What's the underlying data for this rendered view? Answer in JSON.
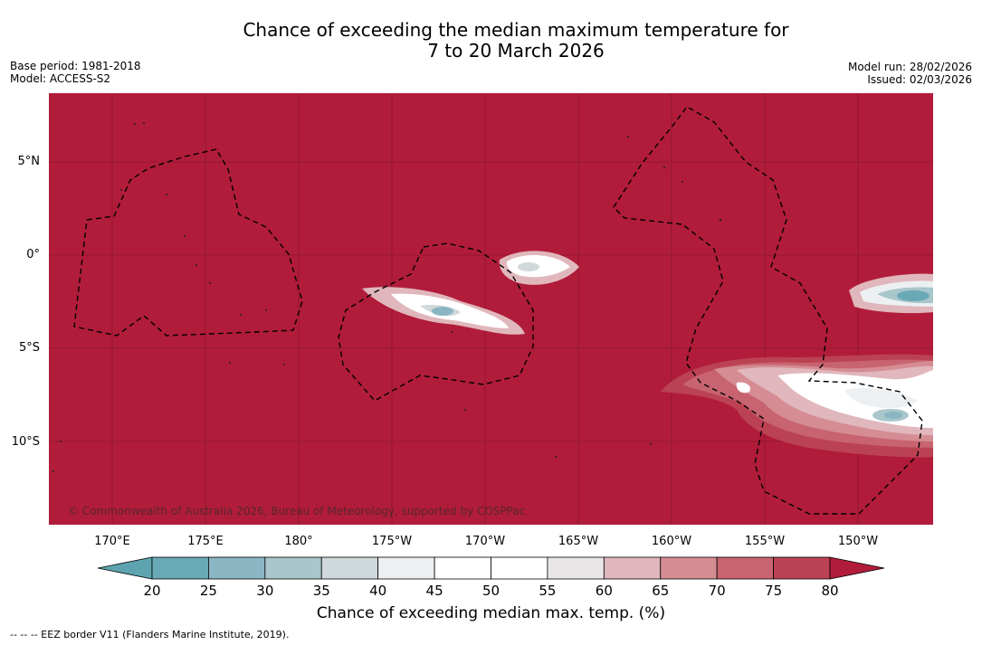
{
  "title": {
    "line1": "Chance of exceeding the median maximum temperature for",
    "line2": "7 to 20 March 2026"
  },
  "meta": {
    "base_period": "Base period: 1981-2018",
    "model": "Model: ACCESS-S2",
    "model_run": "Model run: 28/02/2026",
    "issued": "Issued: 02/03/2026"
  },
  "map": {
    "background_color": "#b11c3a",
    "lat_labels": [
      "5°N",
      "0°",
      "5°S",
      "10°S"
    ],
    "lon_labels": [
      "170°E",
      "175°E",
      "180°",
      "175°W",
      "170°W",
      "165°W",
      "160°W",
      "155°W",
      "150°W"
    ],
    "copyright": "© Commonwealth of Australia 2026, Bureau of Meteorology, supported by COSPPac"
  },
  "colorbar": {
    "title": "Chance of exceeding median max. temp. (%)",
    "ticks": [
      "20",
      "25",
      "30",
      "35",
      "40",
      "45",
      "50",
      "55",
      "60",
      "65",
      "70",
      "75",
      "80"
    ],
    "colors": [
      "#6aa9b6",
      "#8ab6c3",
      "#a9c6cb",
      "#cfd8da",
      "#ecf0f2",
      "#ffffff",
      "#ffffff",
      "#e9e6e7",
      "#e0b7bc",
      "#d58c93",
      "#c7646f",
      "#bb4253"
    ],
    "under_color": "#5da4b0",
    "over_color": "#b11c3a"
  },
  "legend_note": "--  --  -- EEZ border V11 (Flanders Marine Institute, 2019)."
}
